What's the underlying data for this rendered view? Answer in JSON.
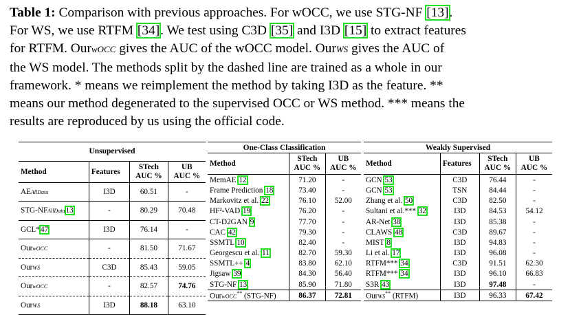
{
  "caption": {
    "label": "Table 1:",
    "line1_a": " Comparison with previous approaches. For wOCC, we use STG-NF ",
    "ref_stgnf": "[13]",
    "line1_b": ".",
    "line2_a": "For WS, we use RTFM ",
    "ref_rtfm": "[34]",
    "line2_b": ". We test using C3D ",
    "ref_c3d": "[35]",
    "line2_c": " and I3D ",
    "ref_i3d": "[15]",
    "line2_d": " to extract features",
    "line3_a": "for RTFM. Our",
    "line3_sub1": "wOCC",
    "line3_b": " gives the AUC of the wOCC model. Our",
    "line3_sub2": "WS",
    "line3_c": " gives the AUC of",
    "line4": "the WS model. The methods split by the dashed line are trained as a whole in our",
    "line5": "framework. * means we reimplement the method by taking I3D as the feature. **",
    "line6": "means our method degenerated to the supervised OCC or WS method. *** means the",
    "line7": "results are reproduced by us using the official code."
  },
  "unsupervised": {
    "group": "Unsupervised",
    "headers": {
      "method": "Method",
      "features": "Features",
      "stech": "STech",
      "stech2": "AUC %",
      "ub": "UB",
      "ub2": "AUC %"
    },
    "rows": [
      {
        "m": "AE",
        "sub": "AllData",
        "ref": "",
        "f": "I3D",
        "s": "60.51",
        "u": "-"
      },
      {
        "m": "STG-NF",
        "sub": "AllData",
        "ref": "13",
        "f": "-",
        "s": "80.29",
        "u": "70.48"
      },
      {
        "m": "GCL*",
        "sub": "",
        "ref": "47",
        "f": "I3D",
        "s": "76.14",
        "u": "-"
      },
      {
        "m": "Our",
        "sub": "wOCC",
        "ref": "",
        "f": "-",
        "s": "81.50",
        "u": "71.67"
      },
      {
        "m": "Our",
        "sub": "WS",
        "ref": "",
        "f": "C3D",
        "s": "85.43",
        "u": "59.05"
      },
      {
        "m": "Our",
        "sub": "wOCC",
        "ref": "",
        "f": "-",
        "s": "82.57",
        "u": "74.76"
      },
      {
        "m": "Our",
        "sub": "WS",
        "ref": "",
        "f": "I3D",
        "s": "88.18",
        "u": "63.10"
      }
    ]
  },
  "occ": {
    "group": "One-Class Classification",
    "headers": {
      "method": "Method",
      "stech": "STech",
      "stech2": "AUC %",
      "ub": "UB",
      "ub2": "AUC %"
    },
    "rows": [
      {
        "m": "MemAE ",
        "ref": "12",
        "s": "71.20",
        "u": "-"
      },
      {
        "m": "Frame Prediction ",
        "ref": "18",
        "s": "73.40",
        "u": "-"
      },
      {
        "m": "Markovitz et al. ",
        "ref": "22",
        "s": "76.10",
        "u": "52.00"
      },
      {
        "m": "HF²-VAD ",
        "ref": "19",
        "s": "76.20",
        "u": "-"
      },
      {
        "m": "CT-D2GAN ",
        "ref": "9",
        "s": "77.70",
        "u": "-"
      },
      {
        "m": "CAC ",
        "ref": "42",
        "s": "79.30",
        "u": "-"
      },
      {
        "m": "SSMTL ",
        "ref": "10",
        "s": "82.40",
        "u": "-"
      },
      {
        "m": "Georgescu et al. ",
        "ref": "11",
        "s": "82.70",
        "u": "59.30"
      },
      {
        "m": "SSMTL++ ",
        "ref": "4",
        "s": "83.80",
        "u": "62.10"
      },
      {
        "m": "Jigsaw ",
        "ref": "39",
        "s": "84.30",
        "u": "56.40"
      },
      {
        "m": "STG-NF ",
        "ref": "13",
        "s": "85.90",
        "u": "71.80"
      },
      {
        "m": "Our",
        "sub": "wOCC",
        "sup": "**",
        "tail": " (STG-NF)",
        "ref": "",
        "s": "86.37",
        "u": "72.81"
      }
    ]
  },
  "ws": {
    "group": "Weakly Supervised",
    "headers": {
      "method": "Method",
      "features": "Features",
      "stech": "STech",
      "stech2": "AUC %",
      "ub": "UB",
      "ub2": "AUC %"
    },
    "rows": [
      {
        "m": "GCN ",
        "ref": "53",
        "f": "C3D",
        "s": "76.44",
        "u": "-"
      },
      {
        "m": "GCN ",
        "ref": "53",
        "f": "TSN",
        "s": "84.44",
        "u": "-"
      },
      {
        "m": "Zhang et al. ",
        "ref": "50",
        "f": "C3D",
        "s": "82.50",
        "u": "-"
      },
      {
        "m": "Sultani et al.*** ",
        "ref": "32",
        "f": "I3D",
        "s": "84.53",
        "u": "54.12"
      },
      {
        "m": "AR-Net ",
        "ref": "38",
        "f": "I3D",
        "s": "85.38",
        "u": "-"
      },
      {
        "m": "CLAWS ",
        "ref": "48",
        "f": "C3D",
        "s": "89.67",
        "u": "-"
      },
      {
        "m": "MIST ",
        "ref": "8",
        "f": "I3D",
        "s": "94.83",
        "u": "-"
      },
      {
        "m": "Li et al. ",
        "ref": "17",
        "f": "I3D",
        "s": "96.08",
        "u": "-"
      },
      {
        "m": "RTFM*** ",
        "ref": "34",
        "f": "C3D",
        "s": "91.51",
        "u": "62.30"
      },
      {
        "m": "RTFM*** ",
        "ref": "34",
        "f": "I3D",
        "s": "96.10",
        "u": "66.83"
      },
      {
        "m": "S3R ",
        "ref": "43",
        "f": "I3D",
        "s": "97.48",
        "u": "-"
      },
      {
        "m": "Our",
        "sub": "WS",
        "sup": "**",
        "tail": " (RTFM)",
        "ref": "",
        "f": "I3D",
        "s": "96.33",
        "u": "67.42"
      }
    ]
  }
}
